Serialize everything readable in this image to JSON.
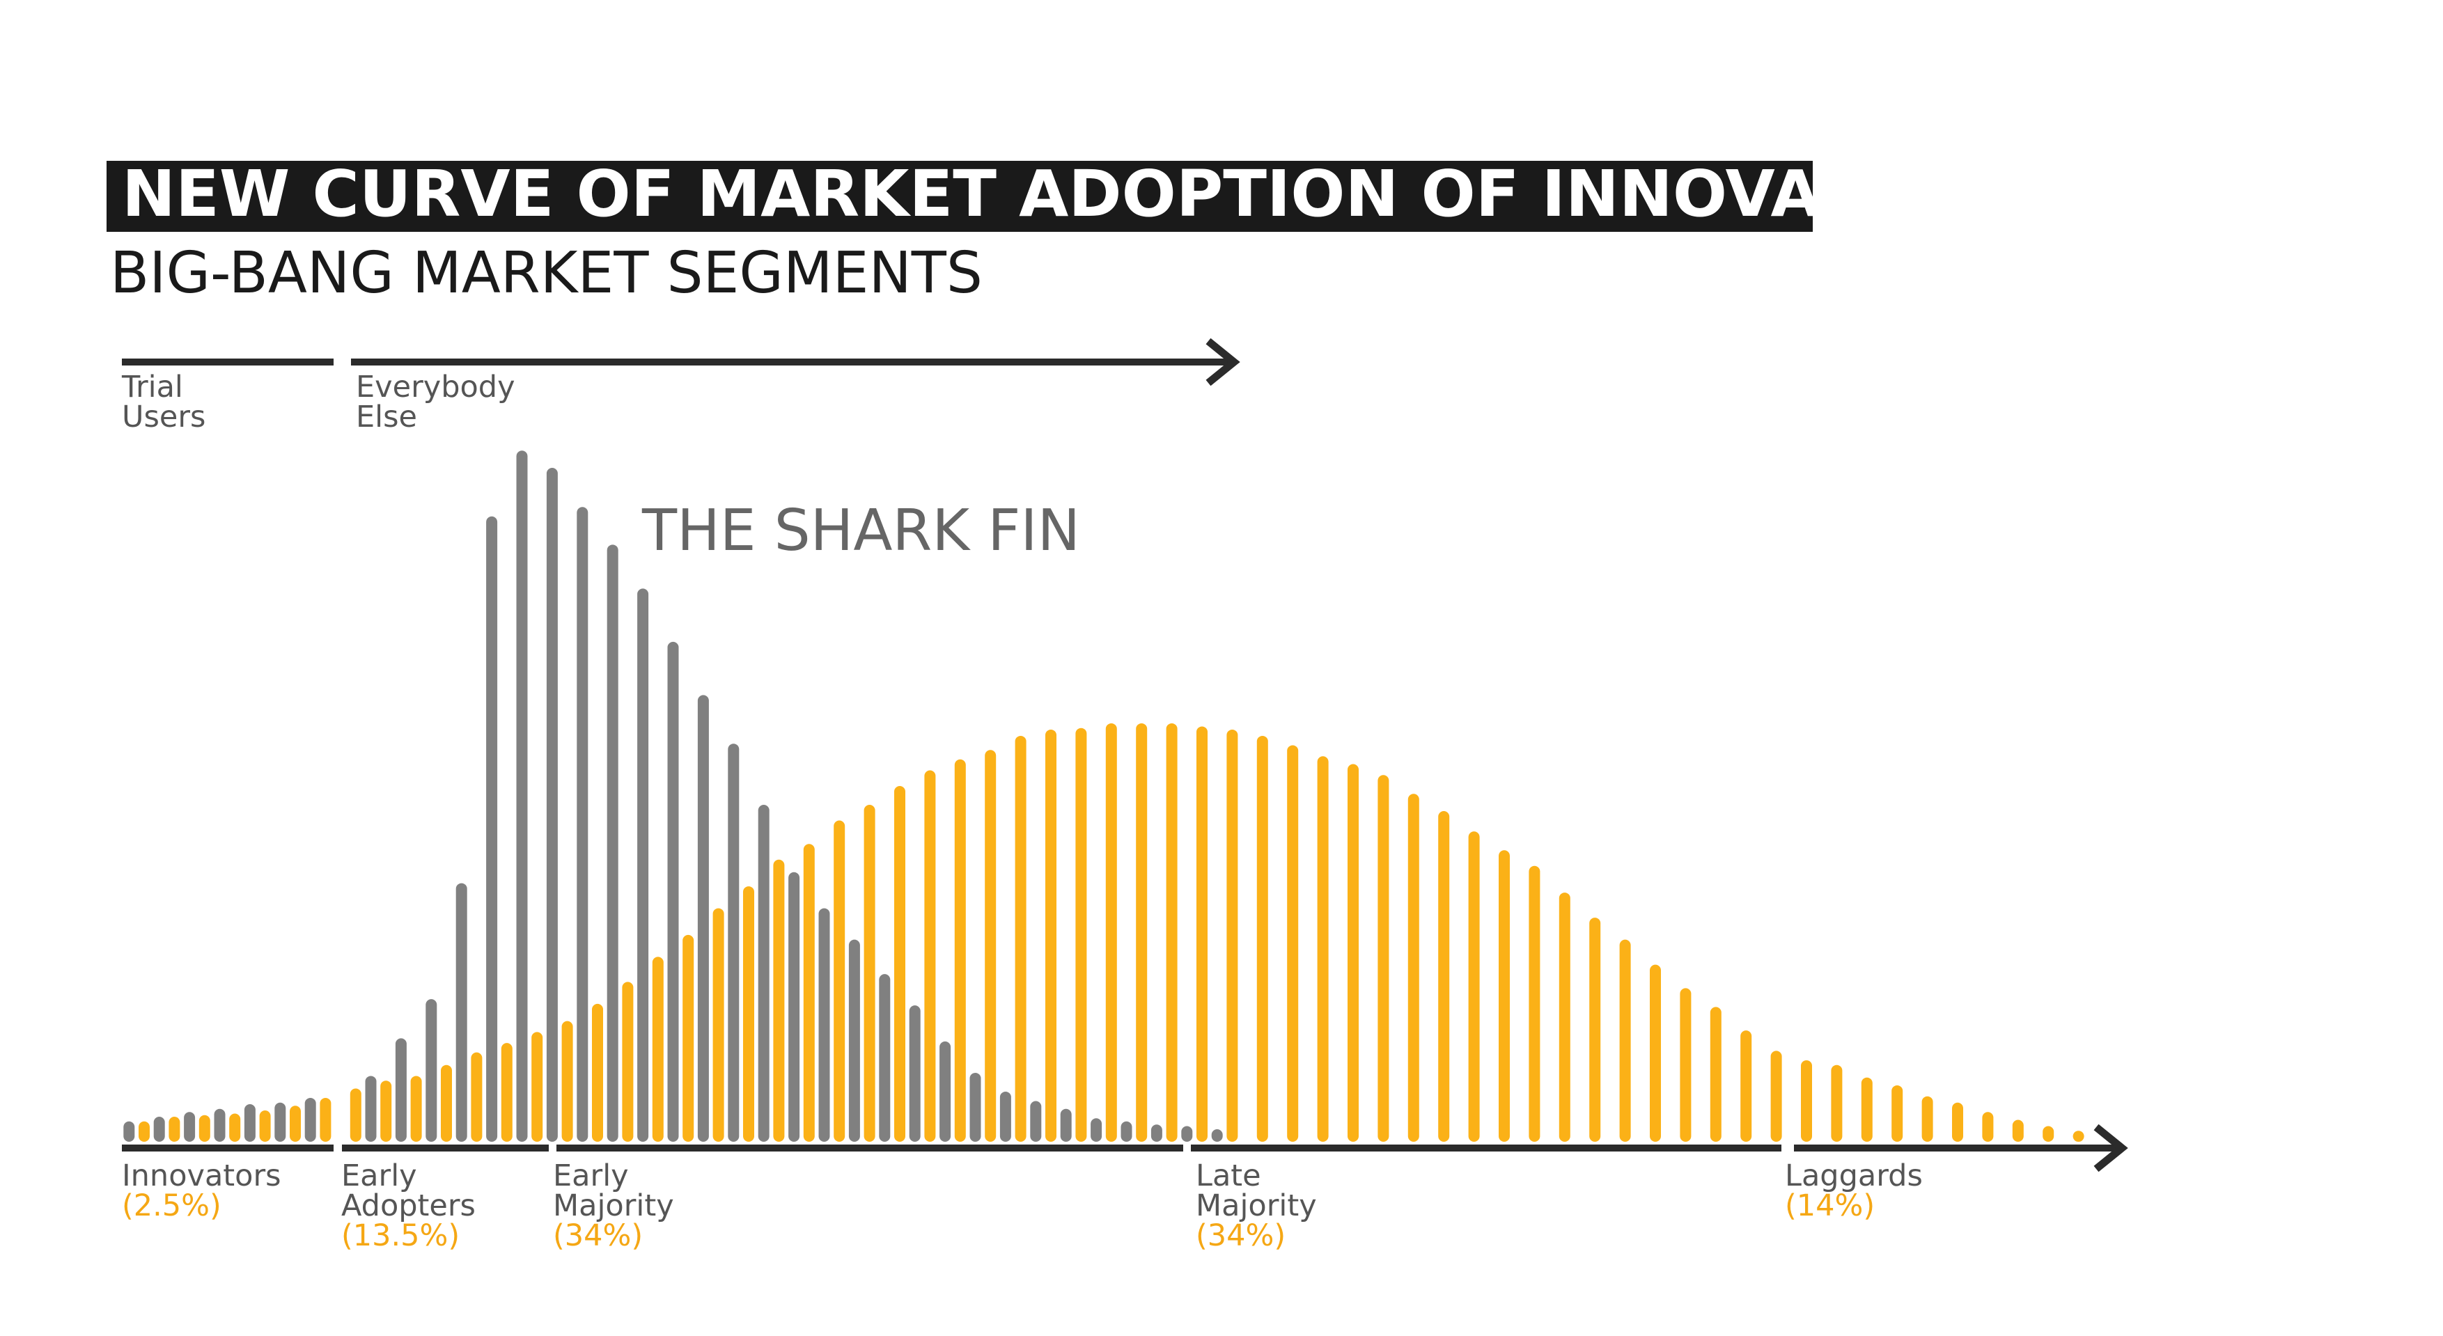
{
  "chart_data": {
    "type": "bar",
    "title": "NEW CURVE OF MARKET ADOPTION OF INNOVATION",
    "subtitle": "BIG-BANG MARKET SEGMENTS",
    "annotation": "THE SHARK FIN",
    "top_segments": [
      [
        "Trial",
        "Users"
      ],
      [
        "Everybody",
        "Else"
      ]
    ],
    "segments": [
      {
        "name": [
          "Innovators"
        ],
        "share": "(2.5%)"
      },
      {
        "name": [
          "Early",
          "Adopters"
        ],
        "share": "(13.5%)"
      },
      {
        "name": [
          "Early",
          "Majority"
        ],
        "share": "(34%)"
      },
      {
        "name": [
          "Late",
          "Majority"
        ],
        "share": "(34%)"
      },
      {
        "name": [
          "Laggards"
        ],
        "share": "(14%)"
      }
    ],
    "categories": [
      null,
      null,
      null,
      null,
      null,
      null,
      null,
      null,
      null,
      null,
      null,
      null,
      null,
      null,
      null,
      null,
      null,
      null,
      null,
      null,
      null,
      null,
      null,
      null,
      null,
      null,
      null,
      null,
      null,
      null,
      null,
      null,
      null,
      null,
      null,
      null,
      null,
      null,
      null,
      null,
      null,
      null,
      null,
      null,
      null,
      null,
      null,
      null,
      null,
      null,
      null,
      null,
      null,
      null,
      null,
      null,
      null,
      null,
      null,
      null,
      null,
      null,
      null,
      null,
      null
    ],
    "ylim": [
      0,
      450
    ],
    "series": [
      {
        "color": "#808080",
        "values": [
          13,
          16,
          19,
          21,
          24,
          25,
          28,
          null,
          42,
          66,
          91,
          165,
          399,
          441,
          430,
          405,
          381,
          353,
          319,
          285,
          254,
          215,
          172,
          149,
          129,
          107,
          87,
          64,
          44,
          32,
          26,
          21,
          15,
          13,
          11,
          10,
          8,
          null,
          null,
          null,
          null,
          null,
          null,
          null,
          null,
          null,
          null,
          null,
          null,
          null,
          null,
          null,
          null,
          null,
          null,
          null,
          null,
          null,
          null,
          null,
          null,
          null,
          null,
          null,
          null
        ]
      },
      {
        "color": "#FBB117",
        "values": [
          13,
          16,
          17,
          18,
          20,
          23,
          28,
          34,
          39,
          42,
          49,
          57,
          63,
          70,
          77,
          88,
          102,
          118,
          132,
          149,
          163,
          180,
          190,
          205,
          215,
          227,
          237,
          244,
          250,
          259,
          263,
          264,
          267,
          267,
          267,
          265,
          263,
          259,
          253,
          246,
          241,
          234,
          222,
          211,
          198,
          186,
          176,
          159,
          143,
          129,
          113,
          98,
          86,
          71,
          58,
          52,
          49,
          41,
          36,
          29,
          25,
          19,
          14,
          10,
          7
        ]
      }
    ]
  }
}
